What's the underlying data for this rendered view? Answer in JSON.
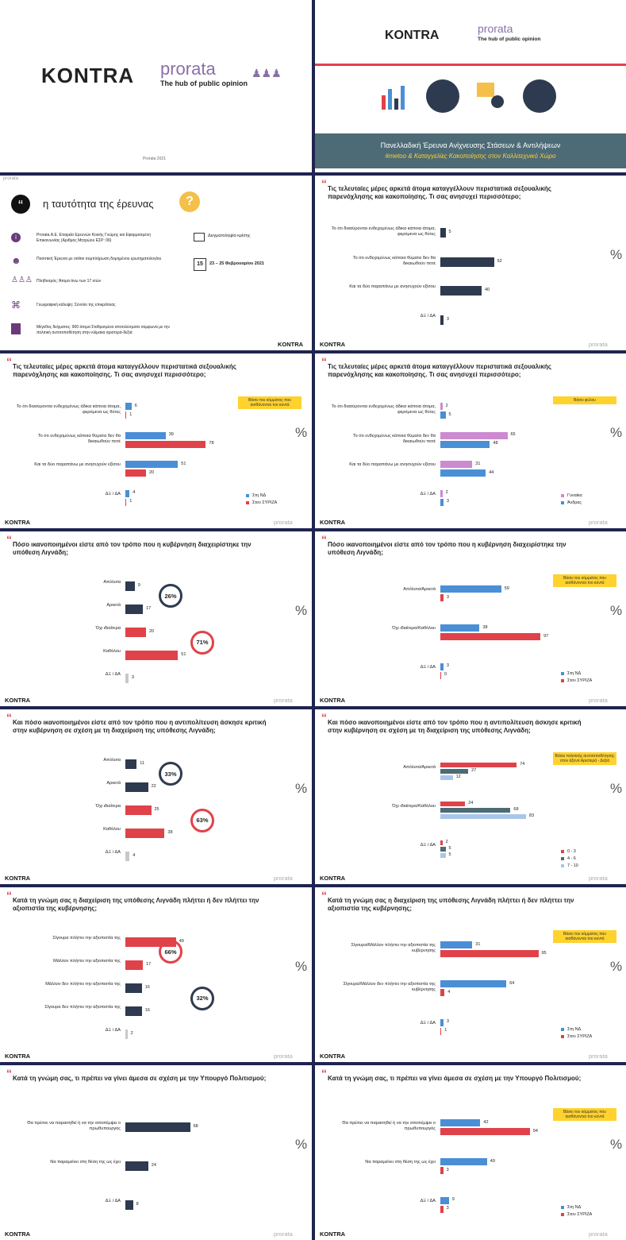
{
  "colors": {
    "navy": "#2e3a4f",
    "blue": "#4a8fd6",
    "red": "#e0424a",
    "pink": "#cc8ad0",
    "teal": "#4d6b76",
    "light": "#a9c6ea",
    "gray": "#c8c8c8",
    "yellow": "#ffd22e"
  },
  "brand": {
    "kontra": "KONTRA",
    "prorata": "prorata",
    "tagline": "The hub of public opinion",
    "copyright": "Prorata 2021",
    "watermark": "prorata"
  },
  "cover": {
    "survey_title": "Πανελλαδική Έρευνα Ανίχνευσης Στάσεων & Αντιλήψεων",
    "survey_sub": "#metoo & Καταγγελίες Κακοποίησης στον Καλλιτεχνικό Χώρο"
  },
  "identity": {
    "title": "η ταυτότητα της έρευνας",
    "items": [
      "Prorata Α.Ε. Εταιρεία Ερευνών Κοινής Γνώμης και Εφαρμοσμένη Επικοινωνίας (Αριθμός Μητρώου ΕΣΡ: 06)",
      "Ποσοτική Έρευνα με online συμπλήρωση δομημένου ερωτηματολογίου",
      "Πληθυσμός: Άτομα άνω των 17 ετών",
      "Γεωγραφική κάλυψη: Σύνολο της επικράτειας",
      "Μέγεθος δείγματος: 900 άτομα Σταθμισμένα αποτελέσματα σύμφωνα με την πολιτική αυτοτοποθέτηση στην κλίμακα αριστερά-δεξιά"
    ],
    "sampling": "Δειγματοληψία κρίσης",
    "date_icon": "15",
    "dates": "23 – 25 Φεβρουαρίου 2021"
  },
  "chart_data": [
    {
      "id": "s4",
      "type": "bar",
      "title": "Τις τελευταίες μέρες αρκετά άτομα καταγγέλλουν περιστατικά σεξουαλικής παρενόχλησης και κακοποίησης. Τι σας ανησυχεί περισσότερο;",
      "categories": [
        "Το ότι διασύρονται ενδεχομένως άδικα κάποια άτομα, φερόμενα ως θύτες",
        "Το ότι ενδεχομένως κάποια θύματα δεν θα δικαιωθούν ποτέ",
        "Και τα δύο παραπάνω με ανησυχούν εξίσου",
        "ΔΞ / ΔΑ"
      ],
      "series": [
        {
          "name": "Σύνολο",
          "values": [
            5,
            52,
            40,
            3
          ]
        }
      ],
      "unit": "%"
    },
    {
      "id": "s5",
      "type": "bar",
      "title": "Τις τελευταίες μέρες αρκετά άτομα καταγγέλλουν περιστατικά σεξουαλικής παρενόχλησης και κακοποίησης. Τι σας ανησυχεί περισσότερο;",
      "note": "Βάσει του κόμματος που αισθάνονται πιο κοντά",
      "categories": [
        "Το ότι διασύρονται ενδεχομένως άδικα κάποια άτομα, φερόμενα ως θύτες",
        "Το ότι ενδεχομένως κάποια θύματα δεν θα δικαιωθούν ποτέ",
        "Και τα δύο παραπάνω με ανησυχούν εξίσου",
        "ΔΞ / ΔΑ"
      ],
      "series": [
        {
          "name": "Στη ΝΔ",
          "values": [
            6,
            39,
            51,
            4
          ]
        },
        {
          "name": "Στον ΣΥΡΙΖΑ",
          "values": [
            1,
            78,
            20,
            1
          ]
        }
      ],
      "unit": "%"
    },
    {
      "id": "s6",
      "type": "bar",
      "title": "Τις τελευταίες μέρες αρκετά άτομα καταγγέλλουν περιστατικά σεξουαλικής παρενόχλησης και κακοποίησης. Τι σας ανησυχεί περισσότερο;",
      "note": "Βάσει φύλου",
      "categories": [
        "Το ότι διασύρονται ενδεχομένως άδικα κάποια άτομα, φερόμενα ως θύτες",
        "Το ότι ενδεχομένως κάποια θύματα δεν θα δικαιωθούν ποτέ",
        "Και τα δύο παραπάνω με ανησυχούν εξίσου",
        "ΔΞ / ΔΑ"
      ],
      "series": [
        {
          "name": "Γυναίκα",
          "values": [
            2,
            65,
            31,
            2
          ]
        },
        {
          "name": "Άνδρας",
          "values": [
            5,
            48,
            44,
            3
          ]
        }
      ],
      "unit": "%"
    },
    {
      "id": "s7",
      "type": "bar",
      "title": "Πόσο ικανοποιημένοι είστε από τον τρόπο που η κυβέρνηση διαχειρίστηκε την υπόθεση Λιγνάδη;",
      "categories": [
        "Απόλυτα",
        "Αρκετά",
        "Όχι ιδιαίτερα",
        "Καθόλου",
        "ΔΞ / ΔΑ"
      ],
      "series": [
        {
          "name": "Σύνολο",
          "values": [
            9,
            17,
            20,
            51,
            3
          ]
        }
      ],
      "totals": [
        "26%",
        "71%"
      ],
      "unit": "%"
    },
    {
      "id": "s8",
      "type": "bar",
      "title": "Πόσο ικανοποιημένοι είστε από τον τρόπο που η κυβέρνηση διαχειρίστηκε την υπόθεση Λιγνάδη;",
      "note": "Βάσει του κόμματος που αισθάνονται πιο κοντά",
      "categories": [
        "Απόλυτα/Αρκετά",
        "Όχι ιδιαίτερα/Καθόλου",
        "ΔΞ / ΔΑ"
      ],
      "series": [
        {
          "name": "Στη ΝΔ",
          "values": [
            59,
            38,
            3
          ]
        },
        {
          "name": "Στον ΣΥΡΙΖΑ",
          "values": [
            3,
            97,
            0
          ]
        }
      ],
      "unit": "%"
    },
    {
      "id": "s9",
      "type": "bar",
      "title": "Και πόσο ικανοποιημένοι είστε από τον τρόπο που η αντιπολίτευση άσκησε κριτική στην κυβέρνηση σε σχέση με τη διαχείριση της υπόθεσης Λιγνάδη;",
      "categories": [
        "Απόλυτα",
        "Αρκετά",
        "Όχι ιδιαίτερα",
        "Καθόλου",
        "ΔΞ / ΔΑ"
      ],
      "series": [
        {
          "name": "Σύνολο",
          "values": [
            11,
            22,
            25,
            38,
            4
          ]
        }
      ],
      "totals": [
        "33%",
        "63%"
      ],
      "unit": "%"
    },
    {
      "id": "s10",
      "type": "bar",
      "title": "Και πόσο ικανοποιημένοι είστε από τον τρόπο που η αντιπολίτευση άσκησε κριτική στην κυβέρνηση σε σχέση με τη διαχείριση της υπόθεσης Λιγνάδη;",
      "note": "Βάσει πολιτικής αυτοτοποθέτησης στον άξονα Αριστερά - Δεξιά",
      "categories": [
        "Απόλυτα/Αρκετά",
        "Όχι ιδιαίτερα/Καθόλου",
        "ΔΞ / ΔΑ"
      ],
      "series": [
        {
          "name": "0 - 3",
          "values": [
            74,
            24,
            2
          ]
        },
        {
          "name": "4 - 6",
          "values": [
            27,
            68,
            5
          ]
        },
        {
          "name": "7 - 10",
          "values": [
            12,
            83,
            5
          ]
        }
      ],
      "unit": "%"
    },
    {
      "id": "s11",
      "type": "bar",
      "title": "Κατά τη γνώμη σας η διαχείριση της υπόθεσης Λιγνάδη πλήττει ή δεν πλήττει την αξιοπιστία της κυβέρνησης;",
      "categories": [
        "Σίγουρα πλήττει την αξιοπιστία της",
        "Μάλλον πλήττει την αξιοπιστία της",
        "Μάλλον δεν πλήττει την αξιοπιστία της",
        "Σίγουρα δεν πλήττει την αξιοπιστία της",
        "ΔΞ / ΔΑ"
      ],
      "series": [
        {
          "name": "Σύνολο",
          "values": [
            49,
            17,
            16,
            16,
            2
          ]
        }
      ],
      "totals": [
        "66%",
        "32%"
      ],
      "unit": "%"
    },
    {
      "id": "s12",
      "type": "bar",
      "title": "Κατά τη γνώμη σας η διαχείριση της υπόθεσης Λιγνάδη πλήττει ή δεν πλήττει την αξιοπιστία της κυβέρνησης;",
      "note": "Βάσει του κόμματος που αισθάνονται πιο κοντά",
      "categories": [
        "Σίγουρα/Μάλλον πλήττει την αξιοπιστία της κυβέρνησης",
        "Σίγουρα/Μάλλον δεν πλήττει την αξιοπιστία της κυβέρνησης",
        "ΔΞ / ΔΑ"
      ],
      "series": [
        {
          "name": "Στη ΝΔ",
          "values": [
            31,
            64,
            3
          ]
        },
        {
          "name": "Στον ΣΥΡΙΖΑ",
          "values": [
            95,
            4,
            1
          ]
        }
      ],
      "unit": "%"
    },
    {
      "id": "s13",
      "type": "bar",
      "title": "Κατά τη γνώμη σας, τι πρέπει να γίνει άμεσα σε σχέση με την Υπουργό Πολιτισμού;",
      "categories": [
        "Θα πρέπει να παραιτηθεί ή να την αποπέμψει ο πρωθυπουργός",
        "Να παραμείνει στη θέση της ως έχει",
        "ΔΞ / ΔΑ"
      ],
      "series": [
        {
          "name": "Σύνολο",
          "values": [
            68,
            24,
            8
          ]
        }
      ],
      "unit": "%"
    },
    {
      "id": "s14",
      "type": "bar",
      "title": "Κατά τη γνώμη σας, τι πρέπει να γίνει άμεσα σε σχέση με την Υπουργό Πολιτισμού;",
      "note": "Βάσει του κόμματος που αισθάνονται πιο κοντά",
      "categories": [
        "Θα πρέπει να παραιτηθεί ή να την αποπέμψει ο πρωθυπουργός",
        "Να παραμείνει στη θέση της ως έχει",
        "ΔΞ / ΔΑ"
      ],
      "series": [
        {
          "name": "Στη ΝΔ",
          "values": [
            42,
            49,
            9
          ]
        },
        {
          "name": "Στον ΣΥΡΙΖΑ",
          "values": [
            94,
            3,
            3
          ]
        }
      ],
      "unit": "%"
    }
  ]
}
